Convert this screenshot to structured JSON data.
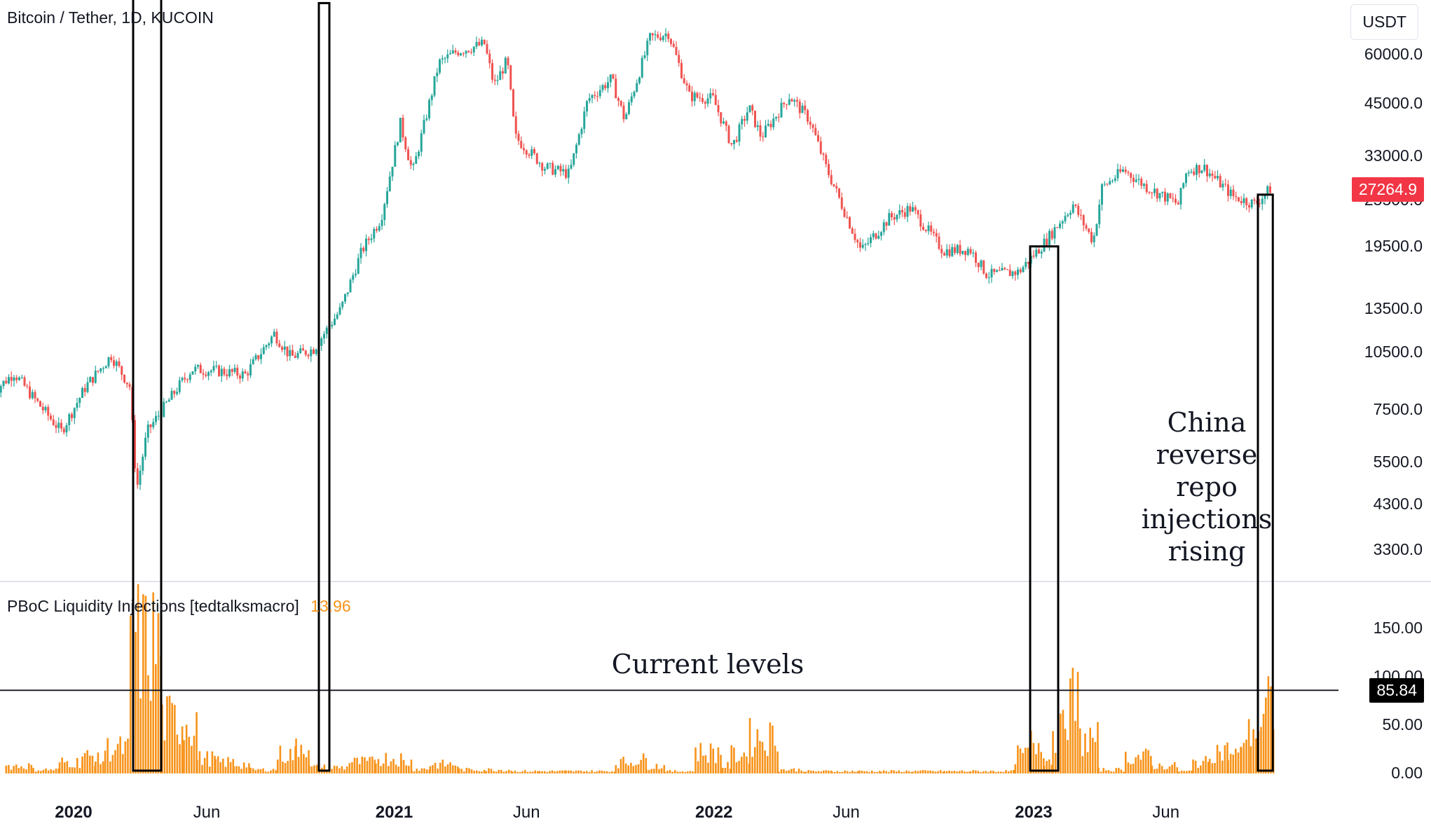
{
  "header": {
    "symbol": "Bitcoin / Tether, 1D, KUCOIN",
    "indicator_name": "PBoC Liquidity Injections [tedtalksmacro]",
    "indicator_value": "13.96"
  },
  "currency_button": "USDT",
  "annotations": {
    "current_levels": "Current levels",
    "china_note_lines": [
      "China",
      "reverse",
      "repo",
      "injections",
      "rising"
    ]
  },
  "colors": {
    "up": "#26a69a",
    "down": "#ef5350",
    "volume_bar": "#f7931a",
    "last_price_badge": "#f23645",
    "indicator_badge": "#000000",
    "grid_divider": "#e0e3eb"
  },
  "chart_data": [
    {
      "type": "line",
      "title": "Bitcoin / Tether, 1D, KUCOIN",
      "y_scale": "log",
      "ylim": [
        2800,
        70000
      ],
      "y_ticks": [
        "60000.0",
        "45000.0",
        "33000.0",
        "25500.0",
        "19500.0",
        "13500.0",
        "10500.0",
        "7500.0",
        "5500.0",
        "4300.0",
        "3300.0"
      ],
      "x_ticks": [
        "2020",
        "Jun",
        "2021",
        "Jun",
        "2022",
        "Jun",
        "2023",
        "Jun"
      ],
      "last_price": "27264.9",
      "series": [
        {
          "x": [
            "2019-10-01",
            "2019-10-25",
            "2019-11-15",
            "2019-12-18",
            "2020-01-15",
            "2020-02-13",
            "2020-03-05",
            "2020-03-13",
            "2020-03-25",
            "2020-04-30",
            "2020-05-15",
            "2020-06-15",
            "2020-07-15",
            "2020-08-17",
            "2020-09-05",
            "2020-10-01",
            "2020-11-01",
            "2020-11-25",
            "2020-12-17",
            "2021-01-08",
            "2021-01-22",
            "2021-02-10",
            "2021-02-21",
            "2021-03-13",
            "2021-04-14",
            "2021-04-25",
            "2021-05-10",
            "2021-05-19",
            "2021-06-22",
            "2021-07-20",
            "2021-08-10",
            "2021-09-06",
            "2021-09-21",
            "2021-10-20",
            "2021-11-10",
            "2021-12-04",
            "2021-12-31",
            "2022-01-22",
            "2022-02-10",
            "2022-02-24",
            "2022-03-28",
            "2022-04-20",
            "2022-05-09",
            "2022-06-18",
            "2022-07-20",
            "2022-08-14",
            "2022-09-20",
            "2022-10-20",
            "2022-11-09",
            "2022-12-15",
            "2023-01-13",
            "2023-02-15",
            "2023-03-10",
            "2023-03-20",
            "2023-04-14",
            "2023-05-10",
            "2023-06-15",
            "2023-06-25",
            "2023-07-14",
            "2023-08-17",
            "2023-09-11",
            "2023-09-28"
          ],
          "values": [
            8300,
            9300,
            8100,
            6600,
            8600,
            10300,
            8600,
            4700,
            6600,
            8600,
            9500,
            9400,
            9200,
            11700,
            10200,
            10700,
            13500,
            19000,
            23000,
            40000,
            30000,
            45000,
            57000,
            61000,
            63800,
            50000,
            58000,
            37000,
            31000,
            29800,
            46000,
            52000,
            41000,
            66000,
            68000,
            47000,
            46300,
            35000,
            44000,
            37000,
            47000,
            41000,
            31000,
            19000,
            23000,
            24400,
            19000,
            19200,
            16500,
            16800,
            19900,
            24900,
            20100,
            27500,
            30500,
            27600,
            25000,
            30500,
            31000,
            26100,
            25000,
            27300
          ]
        }
      ]
    },
    {
      "type": "bar",
      "title": "PBoC Liquidity Injections [tedtalksmacro]",
      "ylim": [
        0,
        175
      ],
      "y_ticks": [
        "150.00",
        "100.00",
        "50.00",
        "0.00"
      ],
      "current_value": "85.84",
      "series": [
        {
          "x": [
            "2019-10-15",
            "2019-11-15",
            "2019-12-15",
            "2020-01-10",
            "2020-01-25",
            "2020-02-05",
            "2020-03-05",
            "2020-04-10",
            "2020-05-05",
            "2020-05-20",
            "2020-06-10",
            "2020-07-01",
            "2020-07-20",
            "2020-08-20",
            "2020-09-10",
            "2020-09-25",
            "2020-10-15",
            "2020-11-10",
            "2020-12-10",
            "2021-01-08",
            "2021-01-20",
            "2021-02-10",
            "2021-03-15",
            "2021-04-15",
            "2021-05-15",
            "2021-06-15",
            "2021-07-15",
            "2021-08-05",
            "2021-09-10",
            "2021-09-30",
            "2021-10-15",
            "2021-11-05",
            "2021-12-10",
            "2022-01-10",
            "2022-01-20",
            "2022-02-10",
            "2022-03-15",
            "2022-04-15",
            "2022-05-15",
            "2022-06-15",
            "2022-07-10",
            "2022-08-15",
            "2022-09-20",
            "2022-10-20",
            "2022-11-15",
            "2022-12-10",
            "2022-12-28",
            "2023-01-12",
            "2023-01-22",
            "2023-02-05",
            "2023-02-22",
            "2023-03-15",
            "2023-04-15",
            "2023-05-15",
            "2023-06-15",
            "2023-07-01",
            "2023-07-20",
            "2023-08-10",
            "2023-08-25",
            "2023-09-05",
            "2023-09-22"
          ],
          "values": [
            10,
            5,
            15,
            22,
            18,
            33,
            170,
            70,
            70,
            20,
            15,
            12,
            5,
            25,
            40,
            8,
            8,
            15,
            20,
            15,
            6,
            12,
            5,
            5,
            3,
            3,
            3,
            3,
            15,
            18,
            10,
            3,
            28,
            10,
            25,
            48,
            5,
            3,
            3,
            3,
            3,
            3,
            3,
            3,
            3,
            25,
            40,
            18,
            55,
            95,
            45,
            5,
            22,
            10,
            3,
            15,
            30,
            25,
            50,
            60,
            86
          ]
        }
      ]
    }
  ]
}
